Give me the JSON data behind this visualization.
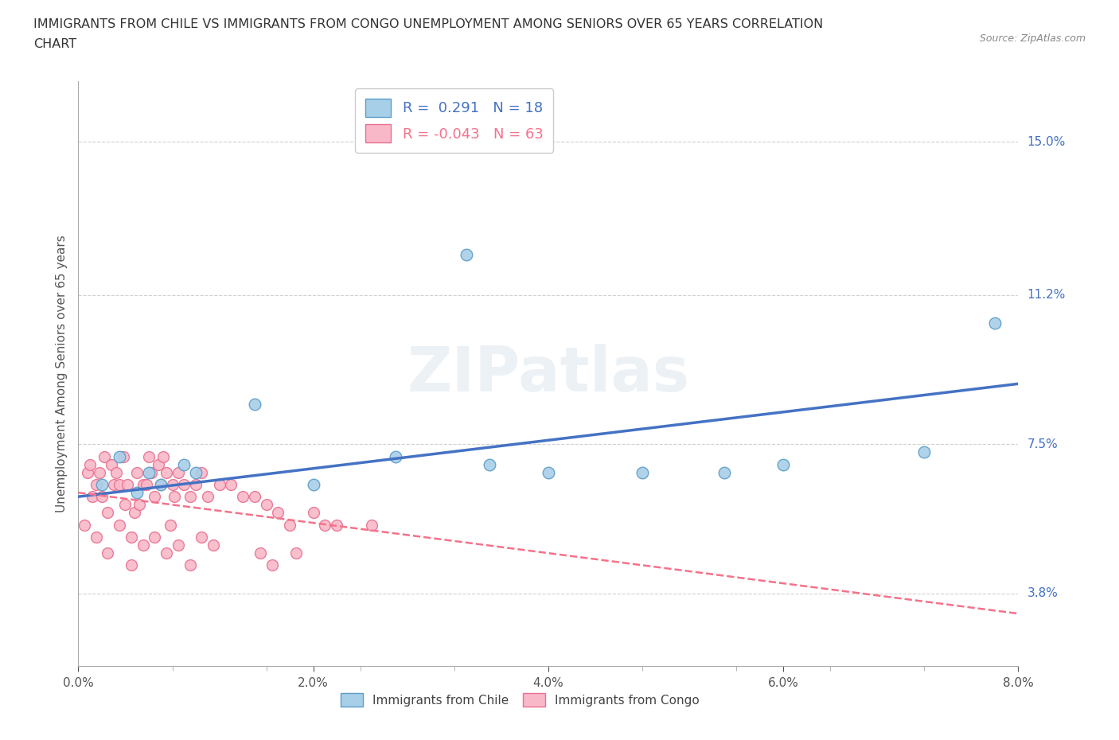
{
  "title_line1": "IMMIGRANTS FROM CHILE VS IMMIGRANTS FROM CONGO UNEMPLOYMENT AMONG SENIORS OVER 65 YEARS CORRELATION",
  "title_line2": "CHART",
  "source": "Source: ZipAtlas.com",
  "xlabel_major_ticks": [
    0.0,
    2.0,
    4.0,
    6.0,
    8.0
  ],
  "xlabel_major_labels": [
    "0.0%",
    "2.0%",
    "4.0%",
    "6.0%",
    "8.0%"
  ],
  "ylabel_right_vals": [
    15.0,
    11.2,
    7.5,
    3.8
  ],
  "ylabel_right_labels": [
    "15.0%",
    "11.2%",
    "7.5%",
    "3.8%"
  ],
  "xlim": [
    0.0,
    8.0
  ],
  "ylim": [
    2.0,
    16.5
  ],
  "watermark": "ZIPatlas",
  "chile_face_color": "#a8cfe8",
  "chile_edge_color": "#5b9dc9",
  "chile_line_color": "#4472C4",
  "congo_face_color": "#f9b8c8",
  "congo_edge_color": "#e87090",
  "congo_line_color": "#f4728a",
  "chile_r": 0.291,
  "chile_n": 18,
  "congo_r": -0.043,
  "congo_n": 63,
  "chile_scatter_x": [
    0.2,
    0.35,
    0.5,
    0.6,
    0.7,
    0.9,
    1.0,
    1.5,
    2.0,
    2.7,
    3.5,
    4.0,
    4.8,
    5.5,
    6.0,
    7.2,
    7.8,
    3.3
  ],
  "chile_scatter_y": [
    6.5,
    7.2,
    6.3,
    6.8,
    6.5,
    7.0,
    6.8,
    8.5,
    6.5,
    7.2,
    7.0,
    6.8,
    6.8,
    6.8,
    7.0,
    7.3,
    10.5,
    12.2
  ],
  "congo_scatter_x": [
    0.05,
    0.08,
    0.1,
    0.12,
    0.15,
    0.18,
    0.2,
    0.22,
    0.25,
    0.28,
    0.3,
    0.32,
    0.35,
    0.38,
    0.4,
    0.42,
    0.45,
    0.48,
    0.5,
    0.52,
    0.55,
    0.58,
    0.6,
    0.62,
    0.65,
    0.68,
    0.7,
    0.72,
    0.75,
    0.78,
    0.8,
    0.82,
    0.85,
    0.9,
    0.95,
    1.0,
    1.05,
    1.1,
    1.2,
    1.3,
    1.4,
    1.5,
    1.6,
    1.7,
    1.8,
    2.0,
    2.2,
    2.5,
    0.15,
    0.25,
    0.35,
    0.45,
    0.55,
    0.65,
    0.75,
    0.85,
    0.95,
    1.05,
    1.15,
    1.55,
    1.65,
    1.85,
    2.1
  ],
  "congo_scatter_y": [
    5.5,
    6.8,
    7.0,
    6.2,
    6.5,
    6.8,
    6.2,
    7.2,
    5.8,
    7.0,
    6.5,
    6.8,
    6.5,
    7.2,
    6.0,
    6.5,
    5.2,
    5.8,
    6.8,
    6.0,
    6.5,
    6.5,
    7.2,
    6.8,
    6.2,
    7.0,
    6.5,
    7.2,
    6.8,
    5.5,
    6.5,
    6.2,
    6.8,
    6.5,
    6.2,
    6.5,
    6.8,
    6.2,
    6.5,
    6.5,
    6.2,
    6.2,
    6.0,
    5.8,
    5.5,
    5.8,
    5.5,
    5.5,
    5.2,
    4.8,
    5.5,
    4.5,
    5.0,
    5.2,
    4.8,
    5.0,
    4.5,
    5.2,
    5.0,
    4.8,
    4.5,
    4.8,
    5.5
  ],
  "background_color": "#ffffff",
  "grid_color": "#d0d0d0",
  "legend_label_chile": "Immigrants from Chile",
  "legend_label_congo": "Immigrants from Congo"
}
